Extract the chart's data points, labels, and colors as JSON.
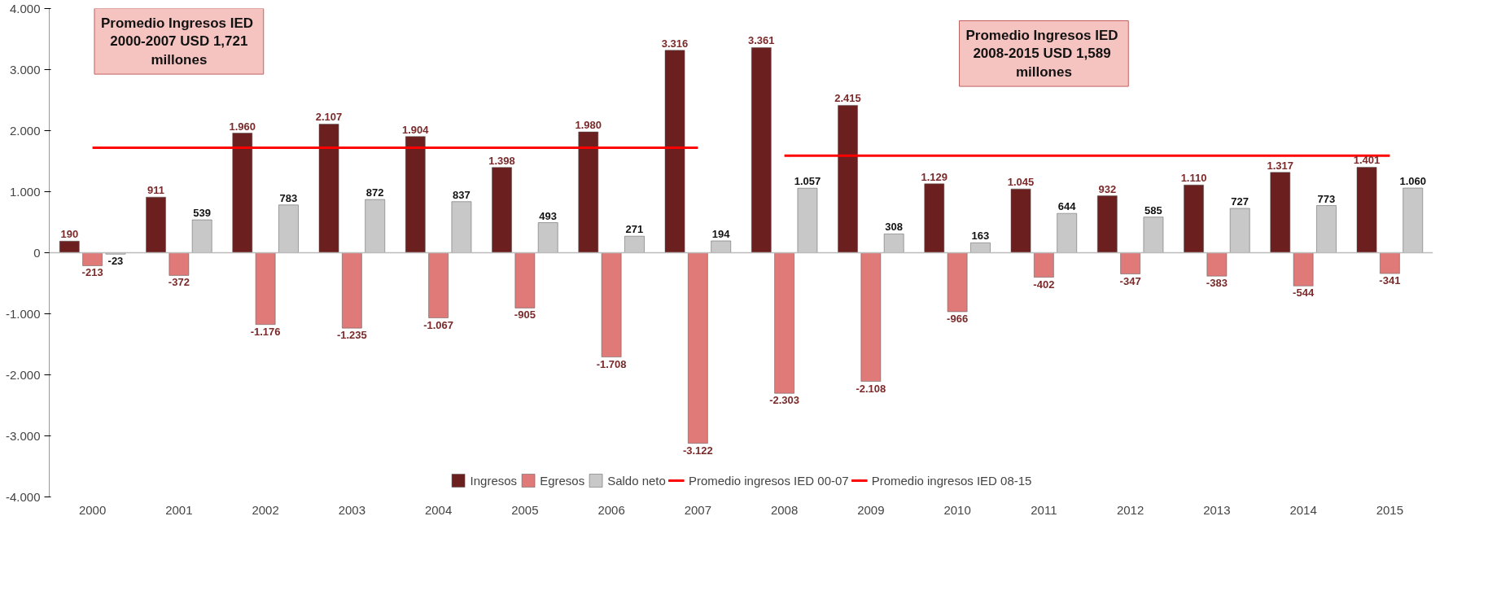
{
  "chart_data": {
    "type": "bar",
    "categories": [
      "2000",
      "2001",
      "2002",
      "2003",
      "2004",
      "2005",
      "2006",
      "2007",
      "2008",
      "2009",
      "2010",
      "2011",
      "2012",
      "2013",
      "2014",
      "2015"
    ],
    "series": [
      {
        "name": "Ingresos",
        "color": "#6b1f1f",
        "values": [
          190,
          911,
          1960,
          2107,
          1904,
          1398,
          1980,
          3316,
          3361,
          2415,
          1129,
          1045,
          932,
          1110,
          1317,
          1401
        ],
        "value_labels": [
          "190",
          "911",
          "1.960",
          "2.107",
          "1.904",
          "1.398",
          "1.980",
          "3.316",
          "3.361",
          "2.415",
          "1.129",
          "1.045",
          "932",
          "1.110",
          "1.317",
          "1.401"
        ]
      },
      {
        "name": "Egresos",
        "color": "#e07a78",
        "values": [
          -213,
          -372,
          -1176,
          -1235,
          -1067,
          -905,
          -1708,
          -3122,
          -2303,
          -2108,
          -966,
          -402,
          -347,
          -383,
          -544,
          -341
        ],
        "value_labels": [
          "-213",
          "-372",
          "-1.176",
          "-1.235",
          "-1.067",
          "-905",
          "-1.708",
          "-3.122",
          "-2.303",
          "-2.108",
          "-966",
          "-402",
          "-347",
          "-383",
          "-544",
          "-341"
        ]
      },
      {
        "name": "Saldo neto",
        "color": "#c8c8c8",
        "values": [
          -23,
          539,
          783,
          872,
          837,
          493,
          271,
          194,
          1057,
          308,
          163,
          644,
          585,
          727,
          773,
          1060
        ],
        "value_labels": [
          "-23",
          "539",
          "783",
          "872",
          "837",
          "493",
          "271",
          "194",
          "1.057",
          "308",
          "163",
          "644",
          "585",
          "727",
          "773",
          "1.060"
        ]
      },
      {
        "name": "Promedio ingresos IED 00-07",
        "type": "line",
        "color": "#ff0000",
        "values": [
          1721,
          1721,
          1721,
          1721,
          1721,
          1721,
          1721,
          1721,
          null,
          null,
          null,
          null,
          null,
          null,
          null,
          null
        ]
      },
      {
        "name": "Promedio ingresos IED 08-15",
        "type": "line",
        "color": "#ff0000",
        "values": [
          null,
          null,
          null,
          null,
          null,
          null,
          null,
          null,
          1589,
          1589,
          1589,
          1589,
          1589,
          1589,
          1589,
          1589
        ]
      }
    ],
    "ylim": [
      -4000,
      4000
    ],
    "yticks": [
      {
        "value": -4000,
        "label": "-4.000"
      },
      {
        "value": -3000,
        "label": "-3.000"
      },
      {
        "value": -2000,
        "label": "-2.000"
      },
      {
        "value": -1000,
        "label": "-1.000"
      },
      {
        "value": 0,
        "label": "0"
      },
      {
        "value": 1000,
        "label": "1.000"
      },
      {
        "value": 2000,
        "label": "2.000"
      },
      {
        "value": 3000,
        "label": "3.000"
      },
      {
        "value": 4000,
        "label": "4.000"
      }
    ],
    "annotations": [
      "Promedio  Ingresos IED\n2000-2007 USD 1,721\nmillones",
      "Promedio  Ingresos IED\n2008-2015  USD 1,589\nmillones"
    ],
    "grid": false,
    "legend": "bottom"
  }
}
